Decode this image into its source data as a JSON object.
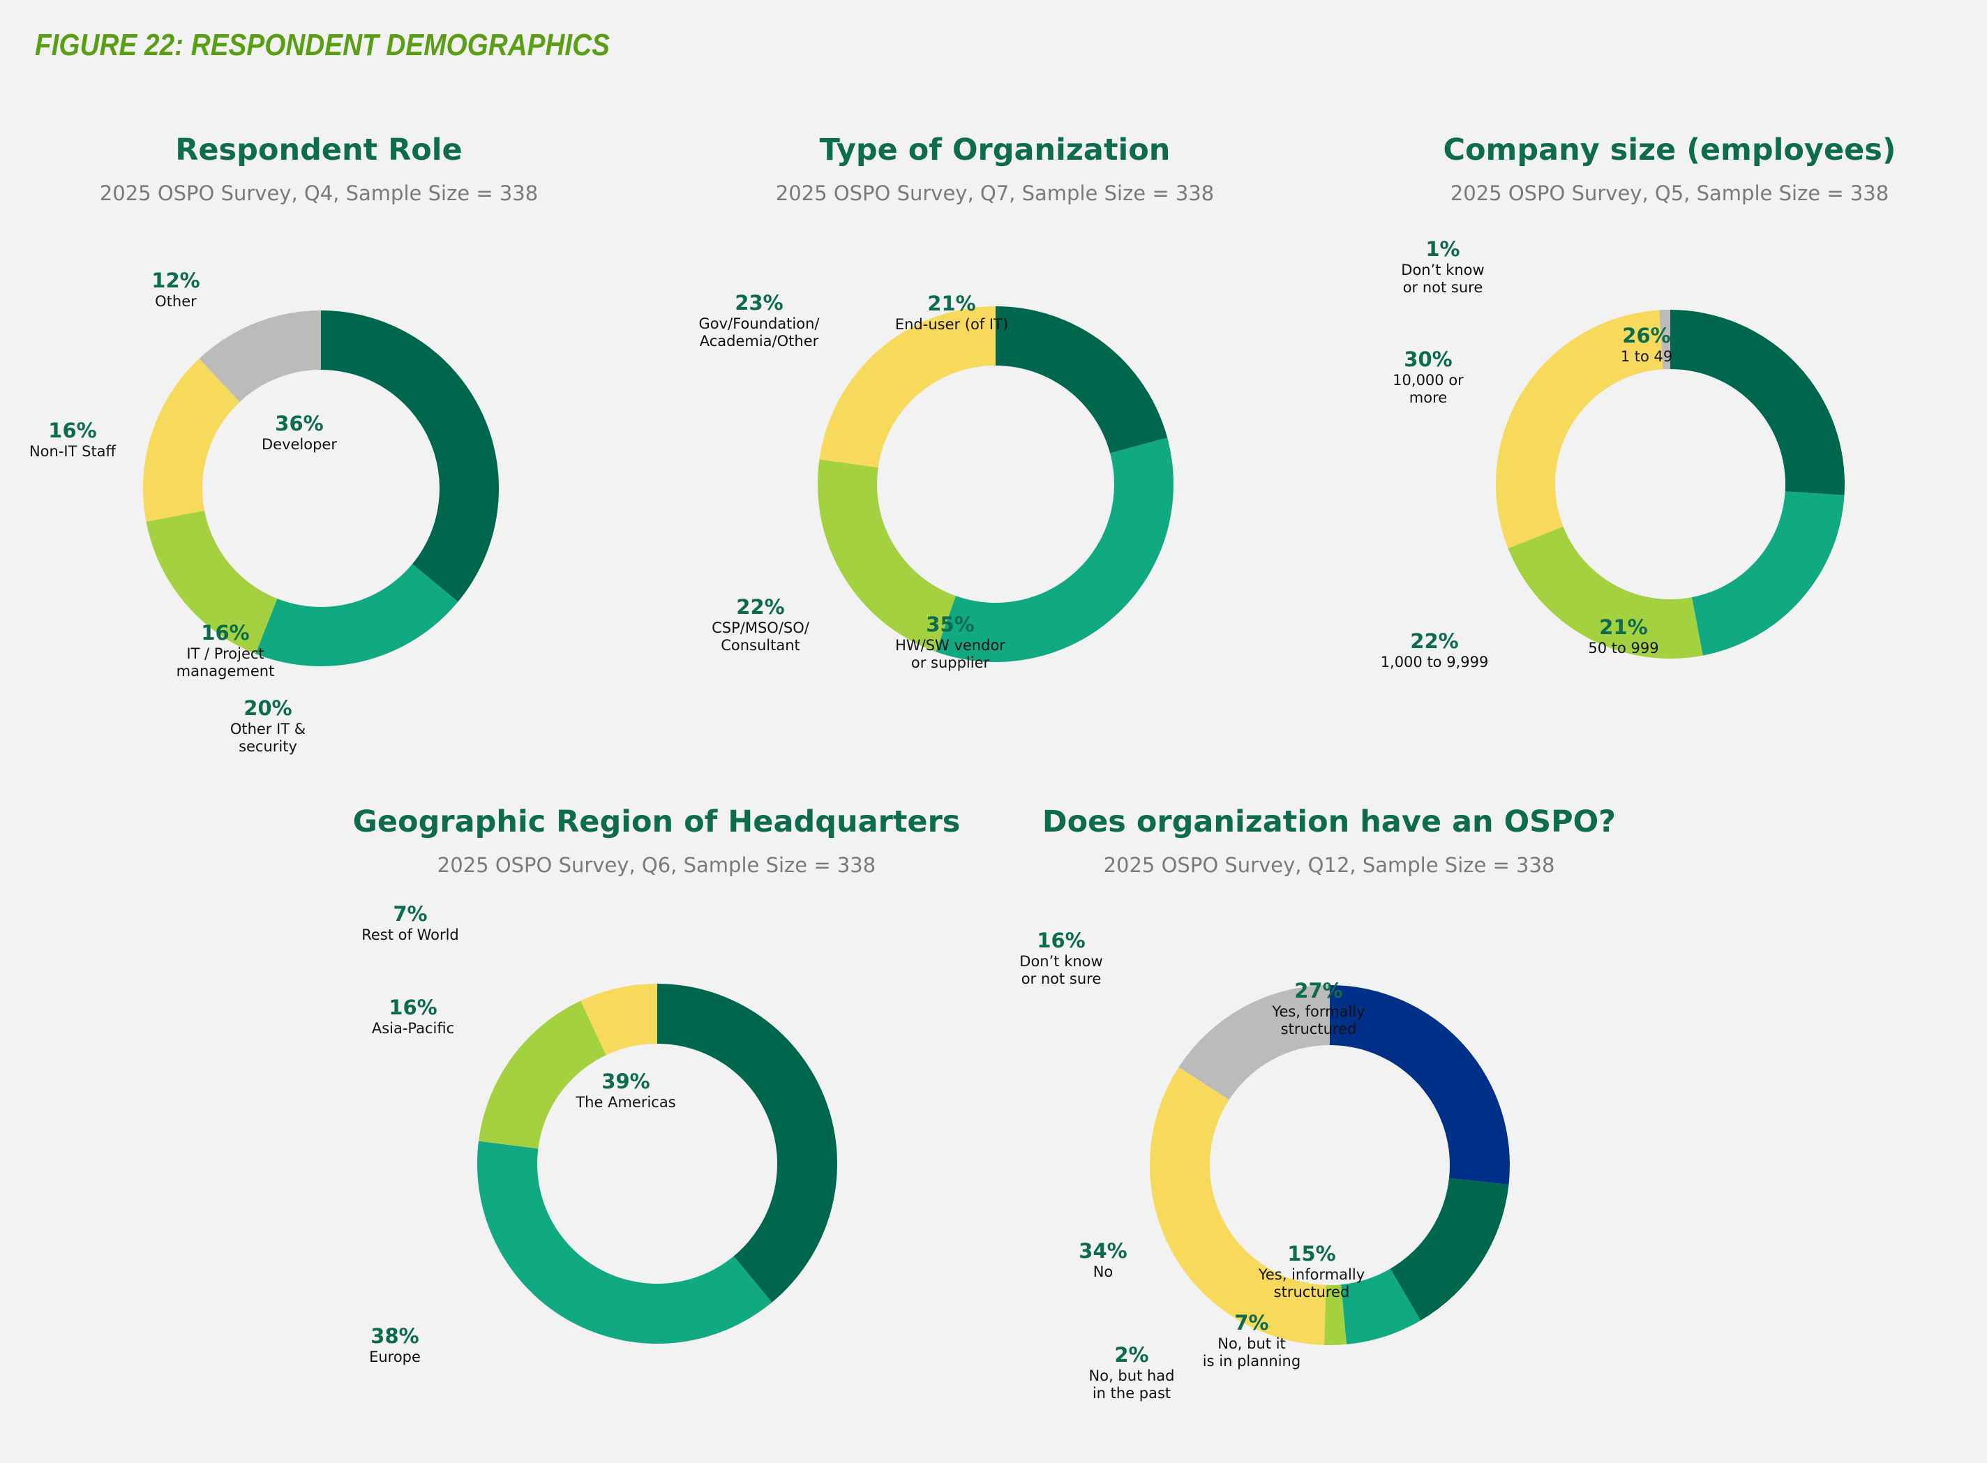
{
  "figure_title": "FIGURE 22: RESPONDENT DEMOGRAPHICS",
  "colors": {
    "dark_green": "#00674f",
    "teal": "#10a981",
    "lime": "#a3d13f",
    "yellow": "#f7d95b",
    "gray": "#bbbbbb",
    "navy": "#003087",
    "title_green": "#0d6b4e",
    "figure_green": "#5a9e14"
  },
  "chart_data": [
    {
      "type": "pie",
      "title": "Respondent Role",
      "subtitle": "2025 OSPO Survey, Q4, Sample Size = 338",
      "categories": [
        "Developer",
        "Other IT & security",
        "IT / Project management",
        "Non-IT Staff",
        "Other"
      ],
      "values": [
        36,
        20,
        16,
        16,
        12
      ],
      "labels": [
        "36%",
        "20%",
        "16%",
        "16%",
        "12%"
      ],
      "colors": [
        "#00674f",
        "#10a981",
        "#a3d13f",
        "#f7d95b",
        "#bbbbbb"
      ]
    },
    {
      "type": "pie",
      "title": "Type of Organization",
      "subtitle": "2025 OSPO Survey, Q7, Sample Size = 338",
      "categories": [
        "End-user (of IT)",
        "HW/SW vendor or supplier",
        "CSP/MSO/SO/ Consultant",
        "Gov/Foundation/ Academia/Other"
      ],
      "values": [
        21,
        35,
        22,
        23
      ],
      "labels": [
        "21%",
        "35%",
        "22%",
        "23%"
      ],
      "colors": [
        "#00674f",
        "#10a981",
        "#a3d13f",
        "#f7d95b"
      ]
    },
    {
      "type": "pie",
      "title": "Company size (employees)",
      "subtitle": "2025 OSPO Survey, Q5, Sample Size = 338",
      "categories": [
        "1 to 49",
        "50 to 999",
        "1,000 to 9,999",
        "10,000 or more",
        "Don’t know or not sure"
      ],
      "values": [
        26,
        21,
        22,
        30,
        1
      ],
      "labels": [
        "26%",
        "21%",
        "22%",
        "30%",
        "1%"
      ],
      "colors": [
        "#00674f",
        "#10a981",
        "#a3d13f",
        "#f7d95b",
        "#bbbbbb"
      ]
    },
    {
      "type": "pie",
      "title": "Geographic Region of Headquarters",
      "subtitle": "2025 OSPO Survey, Q6, Sample Size = 338",
      "categories": [
        "The Americas",
        "Europe",
        "Asia-Pacific",
        "Rest of World"
      ],
      "values": [
        39,
        38,
        16,
        7
      ],
      "labels": [
        "39%",
        "38%",
        "16%",
        "7%"
      ],
      "colors": [
        "#00674f",
        "#10a981",
        "#a3d13f",
        "#f7d95b"
      ]
    },
    {
      "type": "pie",
      "title": "Does organization have an OSPO?",
      "subtitle": "2025 OSPO Survey, Q12, Sample Size = 338",
      "categories": [
        "Yes, formally structured",
        "Yes, informally structured",
        "No, but it is in planning",
        "No, but had in the past",
        "No",
        "Don’t know or not sure"
      ],
      "values": [
        27,
        15,
        7,
        2,
        34,
        16
      ],
      "labels": [
        "27%",
        "15%",
        "7%",
        "2%",
        "34%",
        "16%"
      ],
      "colors": [
        "#003087",
        "#00674f",
        "#10a981",
        "#a3d13f",
        "#f7d95b",
        "#bbbbbb"
      ]
    }
  ]
}
